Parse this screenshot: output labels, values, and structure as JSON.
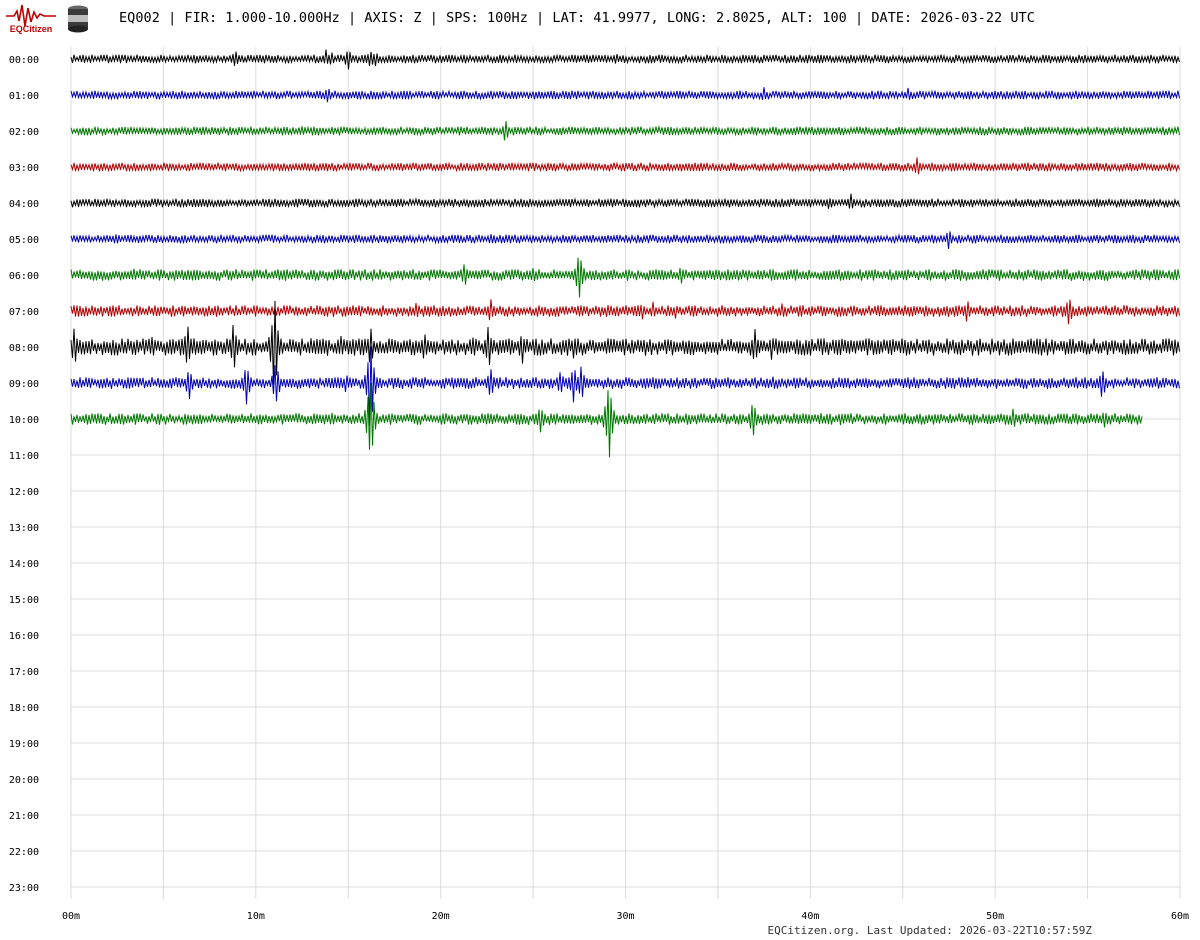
{
  "header": {
    "brand_name": "EQCitizen",
    "title": "EQ002 | FIR: 1.000-10.000Hz | AXIS: Z | SPS: 100Hz | LAT: 41.9977, LONG: 2.8025, ALT: 100 | DATE: 2026-03-22 UTC",
    "logo_icon": "seismograph-logo-icon",
    "sensor_icon": "sensor-device-icon"
  },
  "footer": {
    "text": "EQCitizen.org. Last Updated: 2026-03-22T10:57:59Z"
  },
  "chart_data": {
    "type": "line",
    "subtype": "helicorder",
    "row_labels": [
      "00:00",
      "01:00",
      "02:00",
      "03:00",
      "04:00",
      "05:00",
      "06:00",
      "07:00",
      "08:00",
      "09:00",
      "10:00",
      "11:00",
      "12:00",
      "13:00",
      "14:00",
      "15:00",
      "16:00",
      "17:00",
      "18:00",
      "19:00",
      "20:00",
      "21:00",
      "22:00",
      "23:00"
    ],
    "x_ticks": [
      "00m",
      "10m",
      "20m",
      "30m",
      "40m",
      "50m",
      "60m"
    ],
    "x_range_minutes": [
      0,
      60
    ],
    "grid": true,
    "color_cycle": [
      "#000000",
      "#0000b4",
      "#007800",
      "#b40000"
    ],
    "traces": [
      {
        "hour": "00:00",
        "end_minute": 60,
        "noise": 3,
        "events": [
          [
            8.9,
            12
          ],
          [
            13.8,
            10
          ],
          [
            14.1,
            8
          ],
          [
            15,
            14
          ],
          [
            16.2,
            12
          ],
          [
            16.5,
            10
          ],
          [
            29.5,
            8
          ]
        ]
      },
      {
        "hour": "01:00",
        "end_minute": 60,
        "noise": 3,
        "events": [
          [
            13.9,
            10
          ],
          [
            27,
            6
          ],
          [
            37.5,
            9
          ],
          [
            45.3,
            8
          ]
        ]
      },
      {
        "hour": "02:00",
        "end_minute": 60,
        "noise": 3,
        "events": [
          [
            12.5,
            5
          ],
          [
            23.5,
            14
          ],
          [
            25.2,
            6
          ]
        ]
      },
      {
        "hour": "03:00",
        "end_minute": 60,
        "noise": 3,
        "events": [
          [
            22,
            5
          ],
          [
            45.8,
            12
          ]
        ]
      },
      {
        "hour": "04:00",
        "end_minute": 60,
        "noise": 3,
        "events": [
          [
            41,
            7
          ],
          [
            42.2,
            12
          ]
        ]
      },
      {
        "hour": "05:00",
        "end_minute": 60,
        "noise": 3,
        "events": [
          [
            2.4,
            6
          ],
          [
            22.7,
            7
          ],
          [
            47.5,
            12
          ]
        ]
      },
      {
        "hour": "06:00",
        "end_minute": 60,
        "noise": 4,
        "events": [
          [
            3.4,
            8
          ],
          [
            15,
            6
          ],
          [
            21.3,
            14
          ],
          [
            25,
            10
          ],
          [
            27.5,
            34
          ],
          [
            33,
            12
          ],
          [
            48,
            6
          ]
        ]
      },
      {
        "hour": "07:00",
        "end_minute": 60,
        "noise": 4,
        "events": [
          [
            8.9,
            8
          ],
          [
            18.7,
            10
          ],
          [
            22.7,
            14
          ],
          [
            30.9,
            12
          ],
          [
            31.5,
            10
          ],
          [
            32.7,
            8
          ],
          [
            38.5,
            10
          ],
          [
            41.5,
            6
          ],
          [
            48.5,
            14
          ],
          [
            54,
            18
          ]
        ]
      },
      {
        "hour": "08:00",
        "end_minute": 60,
        "noise": 6,
        "events": [
          [
            0.2,
            24
          ],
          [
            4.4,
            14
          ],
          [
            6.3,
            28
          ],
          [
            8.8,
            30
          ],
          [
            11,
            60
          ],
          [
            14.6,
            12
          ],
          [
            16.2,
            24
          ],
          [
            19.1,
            18
          ],
          [
            21.8,
            14
          ],
          [
            22.6,
            26
          ],
          [
            24.4,
            20
          ],
          [
            27.2,
            16
          ],
          [
            37,
            22
          ],
          [
            37.9,
            14
          ]
        ]
      },
      {
        "hour": "09:00",
        "end_minute": 60,
        "noise": 4,
        "events": [
          [
            6.4,
            22
          ],
          [
            9.5,
            24
          ],
          [
            11.1,
            28
          ],
          [
            14.9,
            12
          ],
          [
            16.2,
            60
          ],
          [
            22.7,
            20
          ],
          [
            26.5,
            16
          ],
          [
            27.2,
            24
          ],
          [
            27.6,
            22
          ],
          [
            38,
            8
          ],
          [
            55.8,
            20
          ]
        ]
      },
      {
        "hour": "10:00",
        "end_minute": 58,
        "noise": 4,
        "events": [
          [
            14.1,
            10
          ],
          [
            16.2,
            55
          ],
          [
            25.4,
            18
          ],
          [
            29.1,
            48
          ],
          [
            36.9,
            24
          ],
          [
            41.6,
            8
          ],
          [
            51,
            14
          ],
          [
            55.9,
            12
          ]
        ]
      }
    ]
  }
}
